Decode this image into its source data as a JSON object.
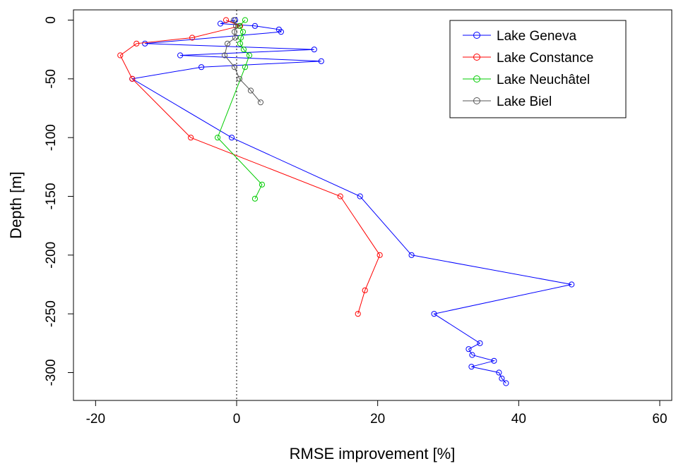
{
  "chart_data": {
    "type": "line",
    "xlabel": "RMSE improvement [%]",
    "ylabel": "Depth [m]",
    "xlim": [
      -23,
      60
    ],
    "ylim": [
      -325,
      8
    ],
    "xticks": [
      -20,
      0,
      20,
      40,
      60
    ],
    "yticks": [
      0,
      -50,
      -100,
      -150,
      -200,
      -250,
      -300
    ],
    "reference_line": {
      "x": 0,
      "style": "dotted"
    },
    "legend_position": "top-right",
    "series": [
      {
        "name": "Lake Geneva",
        "color": "#0000ff",
        "points": [
          {
            "x": -0.2,
            "y": 0
          },
          {
            "x": -2.3,
            "y": -3
          },
          {
            "x": 2.6,
            "y": -5
          },
          {
            "x": 6.0,
            "y": -8
          },
          {
            "x": 6.3,
            "y": -10
          },
          {
            "x": -13.0,
            "y": -20
          },
          {
            "x": 11.0,
            "y": -25
          },
          {
            "x": -8.0,
            "y": -30
          },
          {
            "x": 12.0,
            "y": -35
          },
          {
            "x": -5.0,
            "y": -40
          },
          {
            "x": -14.8,
            "y": -50
          },
          {
            "x": -0.7,
            "y": -100
          },
          {
            "x": 17.5,
            "y": -150
          },
          {
            "x": 24.8,
            "y": -200
          },
          {
            "x": 47.5,
            "y": -225
          },
          {
            "x": 28.0,
            "y": -250
          },
          {
            "x": 34.5,
            "y": -275
          },
          {
            "x": 32.9,
            "y": -280
          },
          {
            "x": 33.4,
            "y": -285
          },
          {
            "x": 36.5,
            "y": -290
          },
          {
            "x": 33.3,
            "y": -295
          },
          {
            "x": 37.2,
            "y": -300
          },
          {
            "x": 37.6,
            "y": -305
          },
          {
            "x": 38.2,
            "y": -309
          }
        ]
      },
      {
        "name": "Lake Constance",
        "color": "#ff0000",
        "points": [
          {
            "x": -1.5,
            "y": 0
          },
          {
            "x": 0.5,
            "y": -5
          },
          {
            "x": -6.3,
            "y": -15
          },
          {
            "x": -14.2,
            "y": -20
          },
          {
            "x": -16.5,
            "y": -30
          },
          {
            "x": -14.8,
            "y": -50
          },
          {
            "x": -6.5,
            "y": -100
          },
          {
            "x": 14.7,
            "y": -150
          },
          {
            "x": 20.3,
            "y": -200
          },
          {
            "x": 18.2,
            "y": -230
          },
          {
            "x": 17.2,
            "y": -250
          }
        ]
      },
      {
        "name": "Lake Neuchâtel",
        "color": "#00cc00",
        "points": [
          {
            "x": 1.2,
            "y": 0
          },
          {
            "x": 0.4,
            "y": -5
          },
          {
            "x": 0.9,
            "y": -10
          },
          {
            "x": 0.6,
            "y": -15
          },
          {
            "x": 0.5,
            "y": -20
          },
          {
            "x": 1.0,
            "y": -25
          },
          {
            "x": 1.8,
            "y": -30
          },
          {
            "x": 1.2,
            "y": -40
          },
          {
            "x": -2.7,
            "y": -100
          },
          {
            "x": 3.6,
            "y": -140
          },
          {
            "x": 2.6,
            "y": -152
          }
        ]
      },
      {
        "name": "Lake Biel",
        "color": "#555555",
        "points": [
          {
            "x": -0.4,
            "y": 0
          },
          {
            "x": -0.1,
            "y": -5
          },
          {
            "x": -0.3,
            "y": -10
          },
          {
            "x": -0.2,
            "y": -15
          },
          {
            "x": -1.3,
            "y": -20
          },
          {
            "x": -1.7,
            "y": -30
          },
          {
            "x": -0.3,
            "y": -40
          },
          {
            "x": 0.4,
            "y": -50
          },
          {
            "x": 2.0,
            "y": -60
          },
          {
            "x": 3.4,
            "y": -70
          }
        ]
      }
    ]
  }
}
